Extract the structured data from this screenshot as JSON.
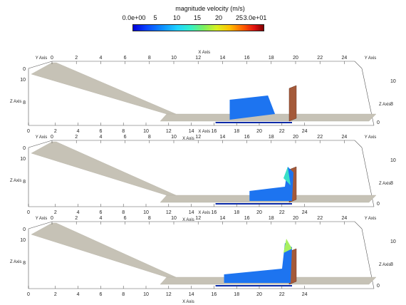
{
  "legend": {
    "title": "magnitude velocity (m/s)",
    "ticks": [
      "0.0e+00",
      "5",
      "10",
      "15",
      "20",
      "25",
      "3.0e+01"
    ]
  },
  "axes": {
    "x_label": "X Axis",
    "y_label": "Y Axis",
    "z_label": "Z Axis",
    "x_ticks": [
      "0",
      "2",
      "4",
      "6",
      "8",
      "10",
      "12",
      "14",
      "16",
      "18",
      "20",
      "22",
      "24"
    ],
    "y_ticks": [
      "0",
      "10"
    ],
    "z_ticks": [
      "10",
      "8"
    ]
  },
  "panels": [
    {
      "name": "frame-1"
    },
    {
      "name": "frame-2"
    },
    {
      "name": "frame-3"
    }
  ],
  "colors": {
    "ramp": "#c6c2b6",
    "water": "#1d74f0",
    "water_deep": "#0a2aa8",
    "wall": "#a45a3a"
  }
}
